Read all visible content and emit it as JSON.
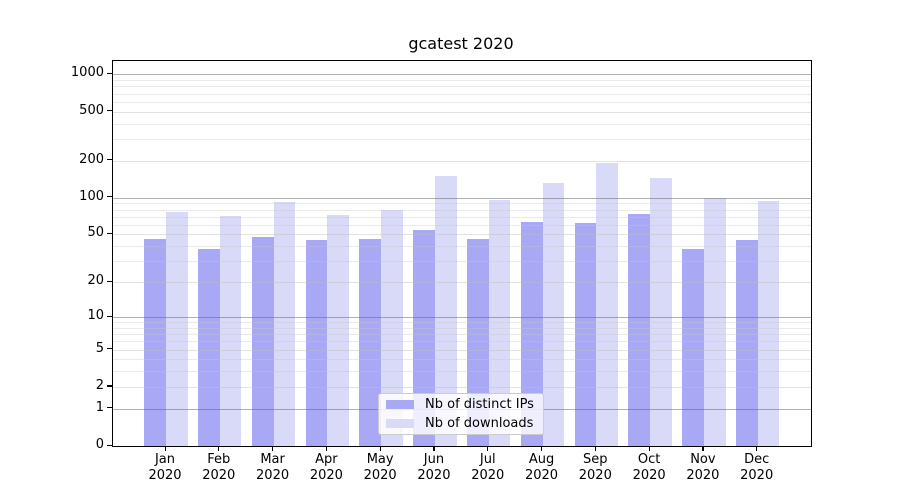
{
  "title": "gcatest 2020",
  "chart_data": {
    "type": "bar",
    "title": "gcatest 2020",
    "categories": [
      "Jan",
      "Feb",
      "Mar",
      "Apr",
      "May",
      "Jun",
      "Jul",
      "Aug",
      "Sep",
      "Oct",
      "Nov",
      "Dec"
    ],
    "x_year_label": "2020",
    "series": [
      {
        "name": "Nb of distinct IPs",
        "color": "#a8a8f4",
        "values": [
          46,
          38,
          48,
          45,
          46,
          54,
          46,
          63,
          62,
          74,
          38,
          45
        ]
      },
      {
        "name": "Nb of downloads",
        "color": "#d9d9f8",
        "values": [
          77,
          71,
          93,
          72,
          80,
          150,
          95,
          132,
          192,
          145,
          100,
          94
        ]
      }
    ],
    "xlabel": "",
    "ylabel": "",
    "y_scale": "log1p",
    "ylim": [
      0,
      1282
    ],
    "y_ticks": [
      0,
      1,
      2,
      5,
      10,
      20,
      50,
      100,
      200,
      500,
      1000
    ],
    "y_decade_ticks": [
      1,
      10,
      100,
      1000
    ],
    "y_minor_ticks": [
      3,
      4,
      6,
      7,
      8,
      9,
      30,
      40,
      60,
      70,
      80,
      90,
      300,
      400,
      600,
      700,
      800,
      900
    ],
    "grid": true,
    "legend_position": "lower center"
  },
  "colors": {
    "background": "#ffffff",
    "axis": "#000000",
    "grid_decade": "#b5b5b5",
    "grid_minor": "#ececec",
    "legend_border": "#cccccc"
  }
}
